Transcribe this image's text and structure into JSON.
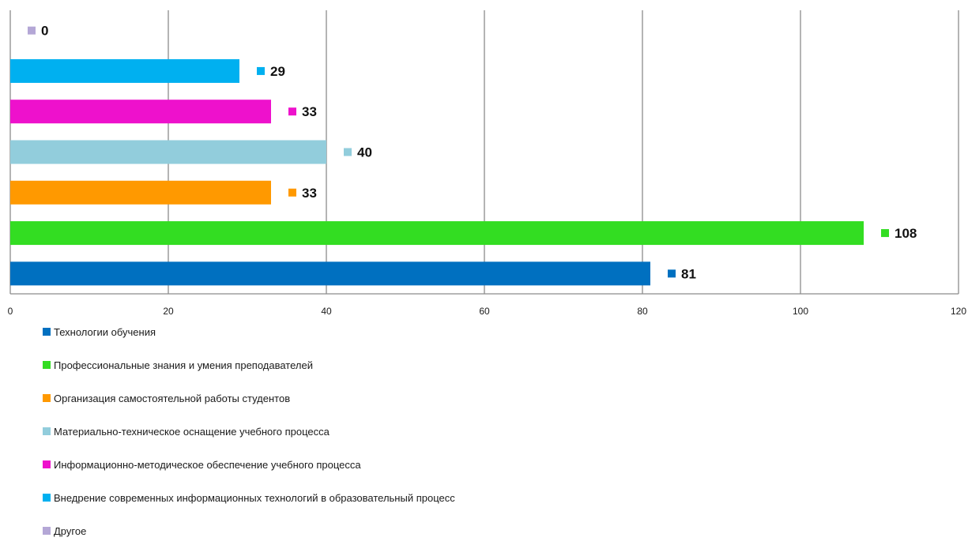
{
  "chart_data": {
    "type": "bar",
    "orientation": "horizontal",
    "xlim": [
      0,
      120
    ],
    "x_ticks": [
      "0",
      "20",
      "40",
      "60",
      "80",
      "100",
      "120"
    ],
    "grid": true,
    "legend_placement": "bottom",
    "series": [
      {
        "name": "Технологии обучения",
        "value": 81,
        "label": "81",
        "color": "#0070C0"
      },
      {
        "name": "Профессиональные знания и умения преподавателей",
        "value": 108,
        "label": "108",
        "color": "#33DD22"
      },
      {
        "name": "Организация самостоятельной работы студентов",
        "value": 33,
        "label": "33",
        "color": "#FF9900"
      },
      {
        "name": "Материально-техническое оснащение учебного процесса",
        "value": 40,
        "label": "40",
        "color": "#92CDDC"
      },
      {
        "name": "Информационно-методическое обеспечение учебного процесса",
        "value": 33,
        "label": "33",
        "color": "#EE11CC"
      },
      {
        "name": "Внедрение современных информационных технологий в образовательный процесс",
        "value": 29,
        "label": "29",
        "color": "#00B0F0"
      },
      {
        "name": "Другое",
        "value": 0,
        "label": "0",
        "color": "#B4A7D6"
      }
    ]
  }
}
